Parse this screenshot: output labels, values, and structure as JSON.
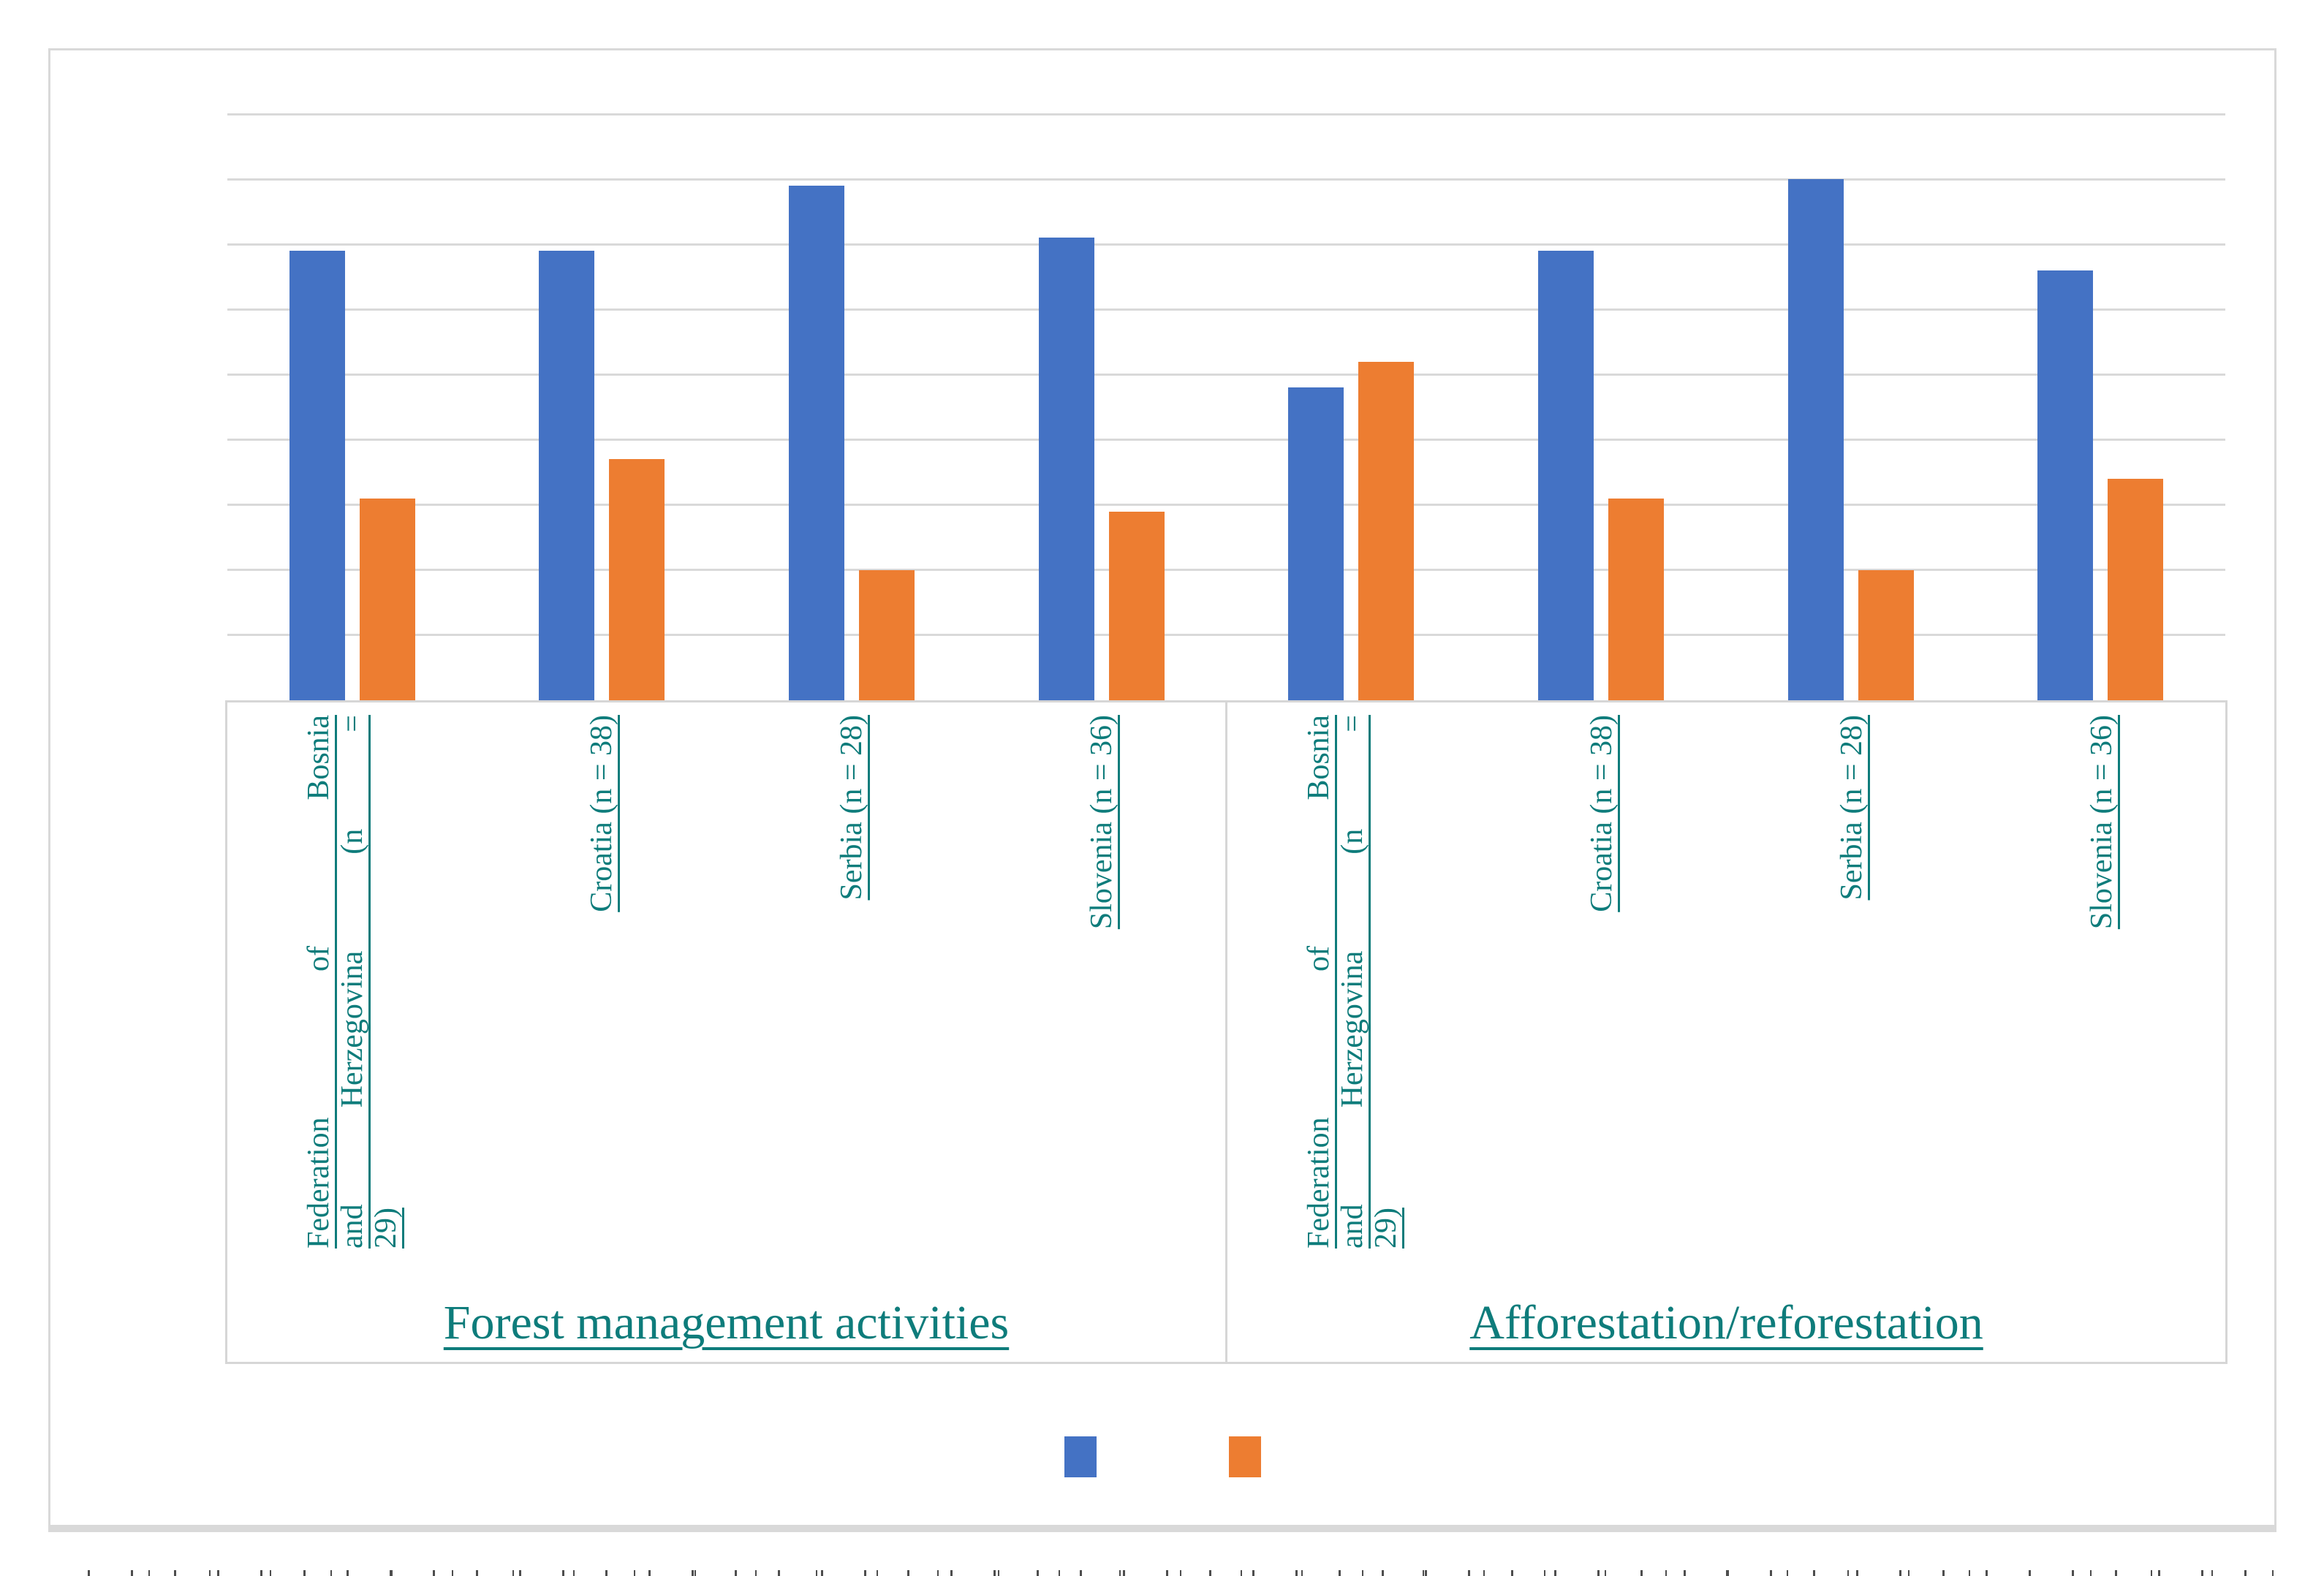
{
  "chart_data": {
    "type": "bar",
    "title": "",
    "y_axis": {
      "min": 0,
      "max": 90,
      "gridline_step": 10,
      "tick_labels_visible": false
    },
    "legend": {
      "position": "bottom",
      "entries": [
        {
          "label": "",
          "color": "#4472C4",
          "name": "blue-series"
        },
        {
          "label": "",
          "color": "#ED7D31",
          "name": "orange-series"
        }
      ]
    },
    "groups": [
      {
        "label": "Forest management activities",
        "categories": [
          {
            "full": "Federation of Bosnia and Herzegovina (n = 29)",
            "lines": [
              "Federation of Bosnia",
              "and Herzegovina (n =",
              "29)"
            ]
          },
          {
            "full": "Croatia (n = 38)",
            "lines": [
              "Croatia (n = 38)"
            ]
          },
          {
            "full": "Serbia (n = 28)",
            "lines": [
              "Serbia (n = 28)"
            ]
          },
          {
            "full": "Slovenia (n = 36)",
            "lines": [
              "Slovenia (n = 36)"
            ]
          }
        ],
        "series": [
          {
            "color_ref": "blue",
            "values": [
              69,
              69,
              79,
              71
            ]
          },
          {
            "color_ref": "orange",
            "values": [
              31,
              37,
              20,
              29
            ]
          }
        ]
      },
      {
        "label": "Afforestation/reforestation",
        "categories": [
          {
            "full": "Federation of Bosnia and Herzegovina (n = 29)",
            "lines": [
              "Federation of Bosnia",
              "and Herzegovina (n =",
              "29)"
            ]
          },
          {
            "full": "Croatia (n = 38)",
            "lines": [
              "Croatia (n = 38)"
            ]
          },
          {
            "full": "Serbia (n = 28)",
            "lines": [
              "Serbia (n = 28)"
            ]
          },
          {
            "full": "Slovenia (n = 36)",
            "lines": [
              "Slovenia (n = 36)"
            ]
          }
        ],
        "series": [
          {
            "color_ref": "blue",
            "values": [
              48,
              69,
              80,
              66
            ]
          },
          {
            "color_ref": "orange",
            "values": [
              52,
              31,
              20,
              34
            ]
          }
        ]
      }
    ],
    "colors": {
      "blue": "#4472C4",
      "orange": "#ED7D31",
      "label_teal": "#0E7C7B",
      "gridline": "#D9D9D9",
      "frame": "#D9D9D9"
    }
  }
}
